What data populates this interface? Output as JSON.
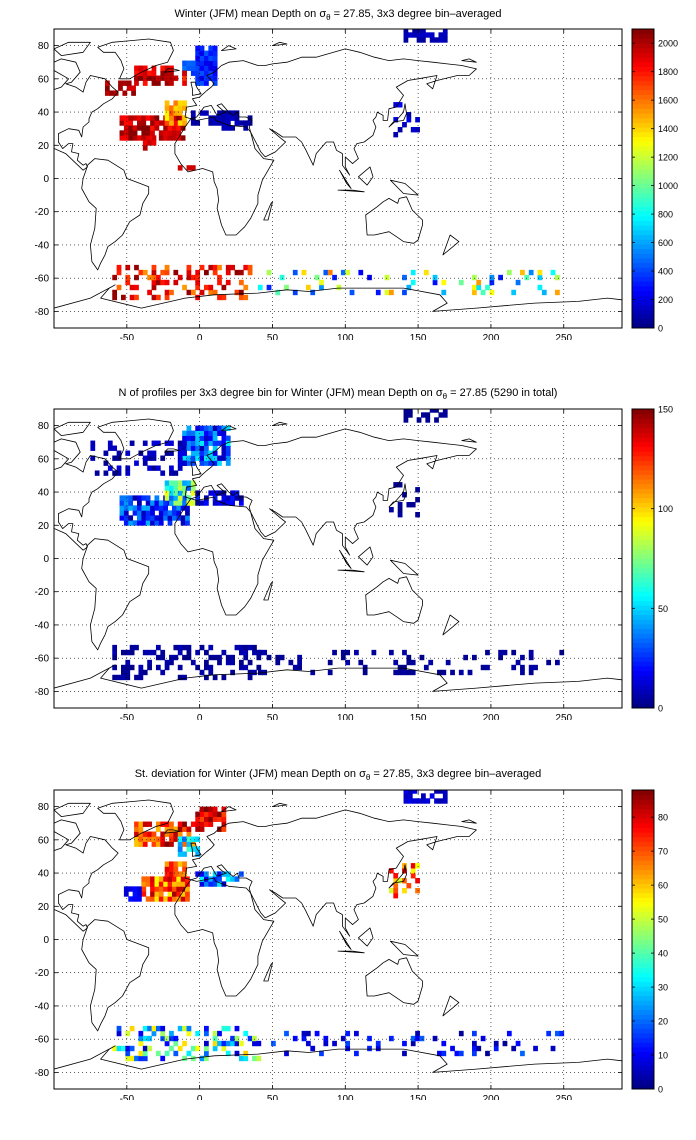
{
  "colormap": "jet",
  "chart_data": [
    {
      "type": "heatmap",
      "title": {
        "pre": "Winter (JFM) mean Depth on σ",
        "sub": "θ",
        "post": " = 27.85, 3x3 degree bin–averaged"
      },
      "xlim": [
        -100,
        290
      ],
      "ylim": [
        -90,
        90
      ],
      "xticks": [
        "-50",
        "0",
        "50",
        "100",
        "150",
        "200",
        "250"
      ],
      "yticks": [
        "80",
        "60",
        "40",
        "20",
        "0",
        "-20",
        "-40",
        "-60",
        "-80"
      ],
      "grid": "dotted",
      "colorbar": {
        "range": [
          0,
          2100
        ],
        "ticks": [
          "2000",
          "1800",
          "1600",
          "1400",
          "1200",
          "1000",
          "800",
          "600",
          "400",
          "200",
          "0"
        ]
      },
      "regions": [
        {
          "lon": [
            -3,
            12
          ],
          "lat": [
            56,
            79
          ],
          "values": [
            450,
            200
          ],
          "density": 0.9
        },
        {
          "lon": [
            -12,
            -3
          ],
          "lat": [
            62,
            71
          ],
          "values": [
            350,
            500
          ],
          "density": 0.8
        },
        {
          "lon": [
            -45,
            -9
          ],
          "lat": [
            56,
            68
          ],
          "values": [
            1700,
            2100
          ],
          "density": 0.7
        },
        {
          "lon": [
            -65,
            -45
          ],
          "lat": [
            50,
            60
          ],
          "values": [
            1900,
            2100
          ],
          "density": 0.5
        },
        {
          "lon": [
            -55,
            -12
          ],
          "lat": [
            23,
            38
          ],
          "values": [
            1800,
            2100
          ],
          "density": 0.9
        },
        {
          "lon": [
            -24,
            -9
          ],
          "lat": [
            32,
            47
          ],
          "values": [
            1300,
            1700
          ],
          "density": 0.9
        },
        {
          "lon": [
            -9,
            27
          ],
          "lat": [
            32,
            41
          ],
          "values": [
            150,
            60
          ],
          "density": 0.7
        },
        {
          "lon": [
            15,
            36
          ],
          "lat": [
            29,
            38
          ],
          "values": [
            150,
            40
          ],
          "density": 0.7
        },
        {
          "lon": [
            -39,
            -30
          ],
          "lat": [
            17,
            26
          ],
          "values": [
            1800,
            2000
          ],
          "density": 0.6
        },
        {
          "lon": [
            -15,
            -3
          ],
          "lat": [
            2,
            8
          ],
          "values": [
            1900,
            2050
          ],
          "density": 0.5
        },
        {
          "lon": [
            -60,
            35
          ],
          "lat": [
            -73,
            -54
          ],
          "values": [
            1500,
            2100
          ],
          "density": 0.35
        },
        {
          "lon": [
            40,
            250
          ],
          "lat": [
            -70,
            -55
          ],
          "values": [
            200,
            1600
          ],
          "density": 0.18
        },
        {
          "lon": [
            130,
            150
          ],
          "lat": [
            25,
            45
          ],
          "values": [
            80,
            250
          ],
          "density": 0.25
        },
        {
          "lon": [
            140,
            170
          ],
          "lat": [
            82,
            89
          ],
          "values": [
            60,
            150
          ],
          "density": 0.6
        }
      ]
    },
    {
      "type": "heatmap",
      "title": {
        "pre": "N of profiles per 3x3 degree bin for Winter (JFM) mean Depth on σ",
        "sub": "θ",
        "post": " = 27.85 (5290 in total)"
      },
      "xlim": [
        -100,
        290
      ],
      "ylim": [
        -90,
        90
      ],
      "xticks": [
        "-50",
        "0",
        "50",
        "100",
        "150",
        "200",
        "250"
      ],
      "yticks": [
        "80",
        "60",
        "40",
        "20",
        "0",
        "-20",
        "-40",
        "-60",
        "-80"
      ],
      "grid": "dotted",
      "colorbar": {
        "range": [
          0,
          150
        ],
        "ticks": [
          "150",
          "100",
          "50",
          "0"
        ]
      },
      "regions": [
        {
          "lon": [
            -12,
            20
          ],
          "lat": [
            56,
            79
          ],
          "values": [
            5,
            55
          ],
          "density": 0.9
        },
        {
          "lon": [
            -75,
            -10
          ],
          "lat": [
            50,
            70
          ],
          "values": [
            2,
            15
          ],
          "density": 0.4
        },
        {
          "lon": [
            -55,
            -9
          ],
          "lat": [
            20,
            38
          ],
          "values": [
            5,
            45
          ],
          "density": 0.85
        },
        {
          "lon": [
            -24,
            -3
          ],
          "lat": [
            32,
            47
          ],
          "values": [
            30,
            95
          ],
          "density": 0.9
        },
        {
          "lon": [
            -3,
            30
          ],
          "lat": [
            32,
            41
          ],
          "values": [
            3,
            25
          ],
          "density": 0.7
        },
        {
          "lon": [
            -60,
            40
          ],
          "lat": [
            -73,
            -54
          ],
          "values": [
            1,
            8
          ],
          "density": 0.4
        },
        {
          "lon": [
            40,
            250
          ],
          "lat": [
            -70,
            -55
          ],
          "values": [
            1,
            6
          ],
          "density": 0.2
        },
        {
          "lon": [
            130,
            150
          ],
          "lat": [
            25,
            45
          ],
          "values": [
            1,
            6
          ],
          "density": 0.25
        },
        {
          "lon": [
            140,
            170
          ],
          "lat": [
            82,
            89
          ],
          "values": [
            1,
            5
          ],
          "density": 0.6
        }
      ]
    },
    {
      "type": "heatmap",
      "title": {
        "pre": "St. deviation for Winter (JFM) mean Depth on σ",
        "sub": "θ",
        "post": " = 27.85, 3x3 degree bin–averaged"
      },
      "xlim": [
        -100,
        290
      ],
      "ylim": [
        -90,
        90
      ],
      "xticks": [
        "-50",
        "0",
        "50",
        "100",
        "150",
        "200",
        "250"
      ],
      "yticks": [
        "80",
        "60",
        "40",
        "20",
        "0",
        "-20",
        "-40",
        "-60",
        "-80"
      ],
      "grid": "dotted",
      "colorbar": {
        "range": [
          0,
          88
        ],
        "ticks": [
          "80",
          "70",
          "60",
          "50",
          "40",
          "30",
          "20",
          "10",
          "0"
        ]
      },
      "regions": [
        {
          "lon": [
            -3,
            18
          ],
          "lat": [
            65,
            80
          ],
          "values": [
            70,
            88
          ],
          "density": 0.9
        },
        {
          "lon": [
            -45,
            -3
          ],
          "lat": [
            56,
            70
          ],
          "values": [
            60,
            88
          ],
          "density": 0.75
        },
        {
          "lon": [
            -15,
            0
          ],
          "lat": [
            50,
            62
          ],
          "values": [
            20,
            40
          ],
          "density": 0.7
        },
        {
          "lon": [
            -40,
            -9
          ],
          "lat": [
            23,
            38
          ],
          "values": [
            55,
            85
          ],
          "density": 0.9
        },
        {
          "lon": [
            -24,
            -9
          ],
          "lat": [
            38,
            47
          ],
          "values": [
            60,
            80
          ],
          "density": 0.9
        },
        {
          "lon": [
            -55,
            -40
          ],
          "lat": [
            23,
            32
          ],
          "values": [
            5,
            12
          ],
          "density": 0.7
        },
        {
          "lon": [
            -3,
            30
          ],
          "lat": [
            32,
            41
          ],
          "values": [
            5,
            35
          ],
          "density": 0.7
        },
        {
          "lon": [
            -60,
            40
          ],
          "lat": [
            -73,
            -54
          ],
          "values": [
            5,
            60
          ],
          "density": 0.35
        },
        {
          "lon": [
            40,
            250
          ],
          "lat": [
            -70,
            -55
          ],
          "values": [
            2,
            20
          ],
          "density": 0.2
        },
        {
          "lon": [
            130,
            150
          ],
          "lat": [
            25,
            45
          ],
          "values": [
            50,
            80
          ],
          "density": 0.3
        },
        {
          "lon": [
            140,
            170
          ],
          "lat": [
            82,
            89
          ],
          "values": [
            2,
            10
          ],
          "density": 0.6
        }
      ]
    }
  ]
}
